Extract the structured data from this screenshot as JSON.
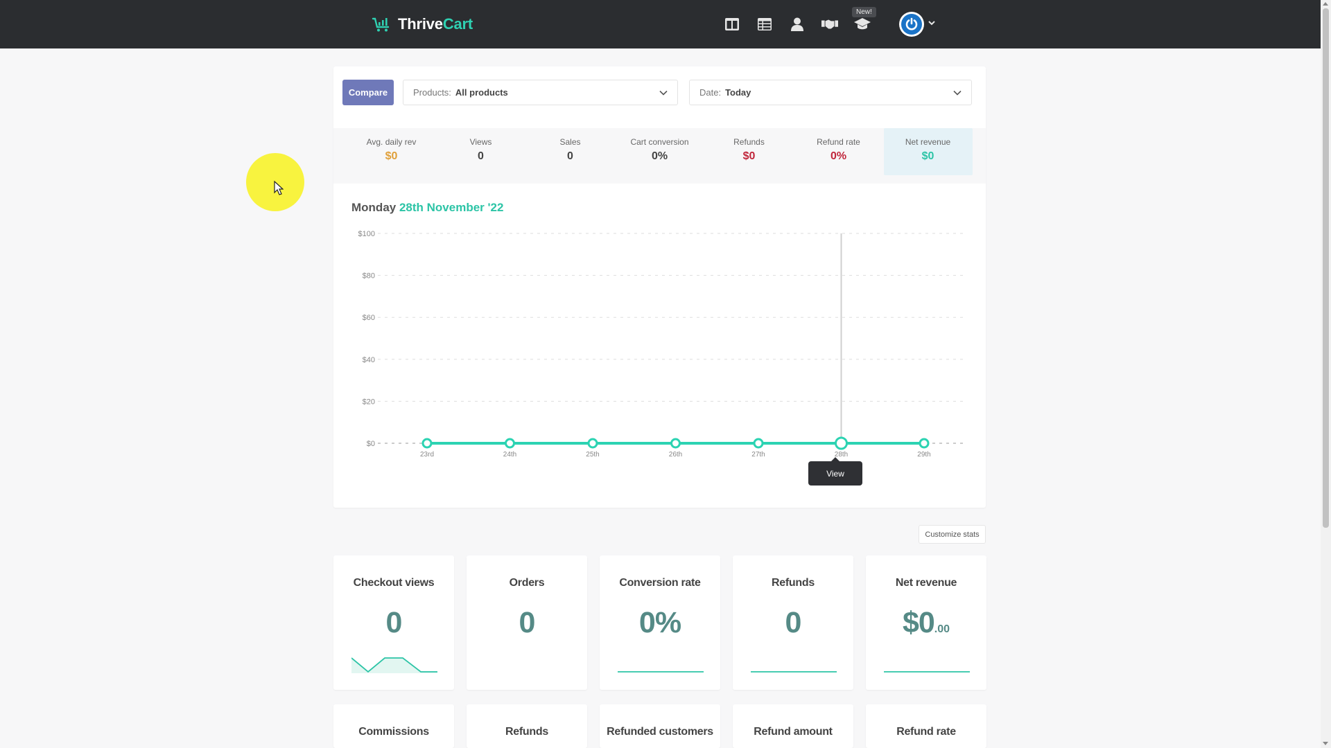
{
  "app": {
    "brand_prefix": "Thrive",
    "brand_suffix": "Cart",
    "new_badge": "New!"
  },
  "nav": {
    "icons": [
      "dashboard-icon",
      "table-icon",
      "user-icon",
      "handshake-icon",
      "graduation-cap-icon"
    ]
  },
  "filters": {
    "compare_label": "Compare",
    "products_label": "Products:",
    "products_value": "All products",
    "date_label": "Date:",
    "date_value": "Today"
  },
  "stats": [
    {
      "label": "Avg. daily rev",
      "value": "$0",
      "color": "#e0a03a"
    },
    {
      "label": "Views",
      "value": "0",
      "color": "#444444"
    },
    {
      "label": "Sales",
      "value": "0",
      "color": "#444444"
    },
    {
      "label": "Cart conversion",
      "value": "0%",
      "color": "#444444"
    },
    {
      "label": "Refunds",
      "value": "$0",
      "color": "#c0263b"
    },
    {
      "label": "Refund rate",
      "value": "0%",
      "color": "#c0263b"
    },
    {
      "label": "Net revenue",
      "value": "$0",
      "color": "#2cc4a6"
    }
  ],
  "chart_heading": {
    "day": "Monday",
    "date": "28th November '22"
  },
  "chart_data": {
    "type": "line",
    "categories": [
      "23rd",
      "24th",
      "25th",
      "26th",
      "27th",
      "28th",
      "29th"
    ],
    "series": [
      {
        "values": [
          0,
          0,
          0,
          0,
          0,
          0,
          0
        ]
      }
    ],
    "y_ticks": [
      "$0",
      "$20",
      "$40",
      "$60",
      "$80",
      "$100"
    ],
    "ylim": [
      0,
      100
    ],
    "grid": true,
    "highlight_category": "28th",
    "line_color": "#2cd3b2"
  },
  "tooltip": {
    "label": "View"
  },
  "customize_label": "Customize stats",
  "tiles_row1": [
    {
      "title": "Checkout views",
      "value": "0"
    },
    {
      "title": "Orders",
      "value": "0"
    },
    {
      "title": "Conversion rate",
      "value": "0%"
    },
    {
      "title": "Refunds",
      "value": "0"
    },
    {
      "title": "Net revenue",
      "value": "$0",
      "cents": ".00"
    }
  ],
  "tiles_row2": [
    {
      "title": "Commissions"
    },
    {
      "title": "Refunds"
    },
    {
      "title": "Refunded customers"
    },
    {
      "title": "Refund amount"
    },
    {
      "title": "Refund rate"
    }
  ]
}
